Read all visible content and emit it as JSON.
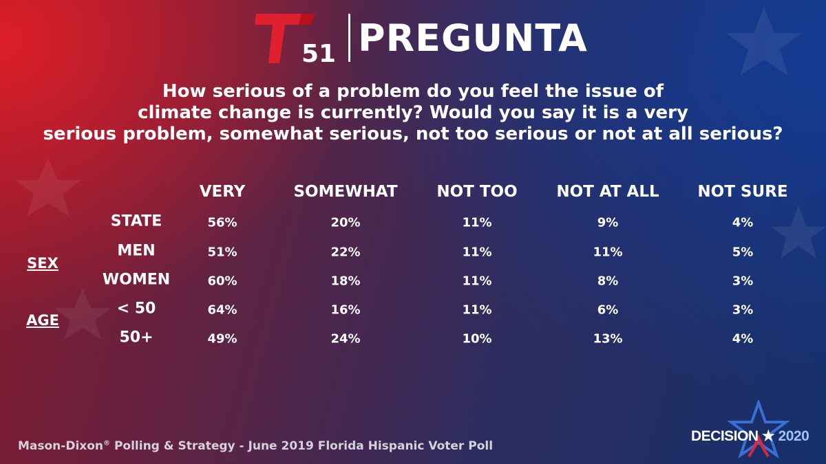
{
  "header": {
    "logo_number": "51",
    "title": "PREGUNTA"
  },
  "question": [
    "How serious of a problem do you feel the issue of",
    "climate change is currently? Would you say it is a very",
    "serious problem, somewhat serious, not too serious or not at all serious?"
  ],
  "chart_data": {
    "type": "table",
    "columns": [
      "VERY",
      "SOMEWHAT",
      "NOT TOO",
      "NOT AT ALL",
      "NOT SURE"
    ],
    "groups": [
      {
        "label": "SEX",
        "rows": [
          "MEN",
          "WOMEN"
        ]
      },
      {
        "label": "AGE",
        "rows": [
          "< 50",
          "50+"
        ]
      }
    ],
    "rows": [
      {
        "label": "STATE",
        "values": [
          "56%",
          "20%",
          "11%",
          "9%",
          "4%"
        ]
      },
      {
        "label": "MEN",
        "values": [
          "51%",
          "22%",
          "11%",
          "11%",
          "5%"
        ]
      },
      {
        "label": "WOMEN",
        "values": [
          "60%",
          "18%",
          "11%",
          "8%",
          "3%"
        ]
      },
      {
        "label": "< 50",
        "values": [
          "64%",
          "16%",
          "11%",
          "6%",
          "3%"
        ]
      },
      {
        "label": "50+",
        "values": [
          "49%",
          "24%",
          "10%",
          "13%",
          "4%"
        ]
      }
    ]
  },
  "footer": {
    "source_prefix": "Mason-Dixon",
    "source_mark": "®",
    "source_suffix": " Polling & Strategy - June 2019 Florida Hispanic Voter Poll"
  },
  "badge": {
    "word": "DECISION",
    "star": "★",
    "year": "2020"
  },
  "colors": {
    "logo_red": "#e0202e",
    "badge_star_outline": "#3a6fd8",
    "badge_star_fill": "#d8283a"
  }
}
